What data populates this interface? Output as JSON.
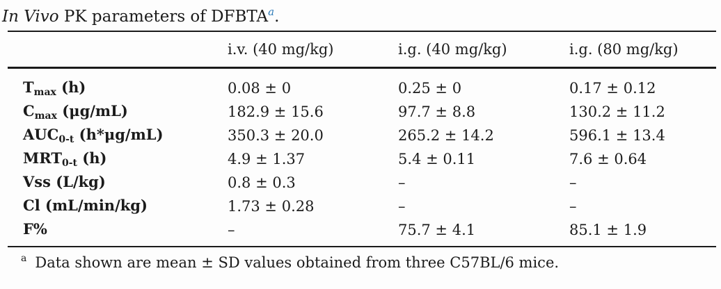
{
  "title": {
    "italic": "In Vivo",
    "rest": " PK parameters of DFBTA",
    "superscript": "a",
    "period": "."
  },
  "accent_color": "#2e7bb8",
  "table": {
    "header": [
      "",
      "i.v. (40 mg/kg)",
      "i.g. (40 mg/kg)",
      "i.g. (80 mg/kg)"
    ],
    "rows": [
      {
        "base": "T",
        "sub": "max",
        "unit": " (h)",
        "values": [
          "0.08 ± 0",
          "0.25 ± 0",
          "0.17 ± 0.12"
        ]
      },
      {
        "base": "C",
        "sub": "max",
        "unit": " (μg/mL)",
        "values": [
          "182.9 ± 15.6",
          "97.7 ± 8.8",
          "130.2 ± 11.2"
        ]
      },
      {
        "base": "AUC",
        "sub": "0-t",
        "unit": " (h*μg/mL)",
        "values": [
          "350.3 ± 20.0",
          "265.2 ± 14.2",
          "596.1 ± 13.4"
        ]
      },
      {
        "base": "MRT",
        "sub": "0-t",
        "unit": " (h)",
        "values": [
          "4.9 ± 1.37",
          "5.4 ± 0.11",
          "7.6 ± 0.64"
        ]
      },
      {
        "base": "Vss",
        "sub": "",
        "unit": " (L/kg)",
        "values": [
          "0.8 ± 0.3",
          "–",
          "–"
        ]
      },
      {
        "base": "Cl",
        "sub": "",
        "unit": " (mL/min/kg)",
        "values": [
          "1.73 ± 0.28",
          "–",
          "–"
        ]
      },
      {
        "base": "F%",
        "sub": "",
        "unit": "",
        "values": [
          "–",
          "75.7 ± 4.1",
          "85.1 ± 1.9"
        ]
      }
    ]
  },
  "footnote": {
    "marker": "a",
    "text": "Data shown are mean ± SD values obtained from three C57BL/6 mice."
  }
}
